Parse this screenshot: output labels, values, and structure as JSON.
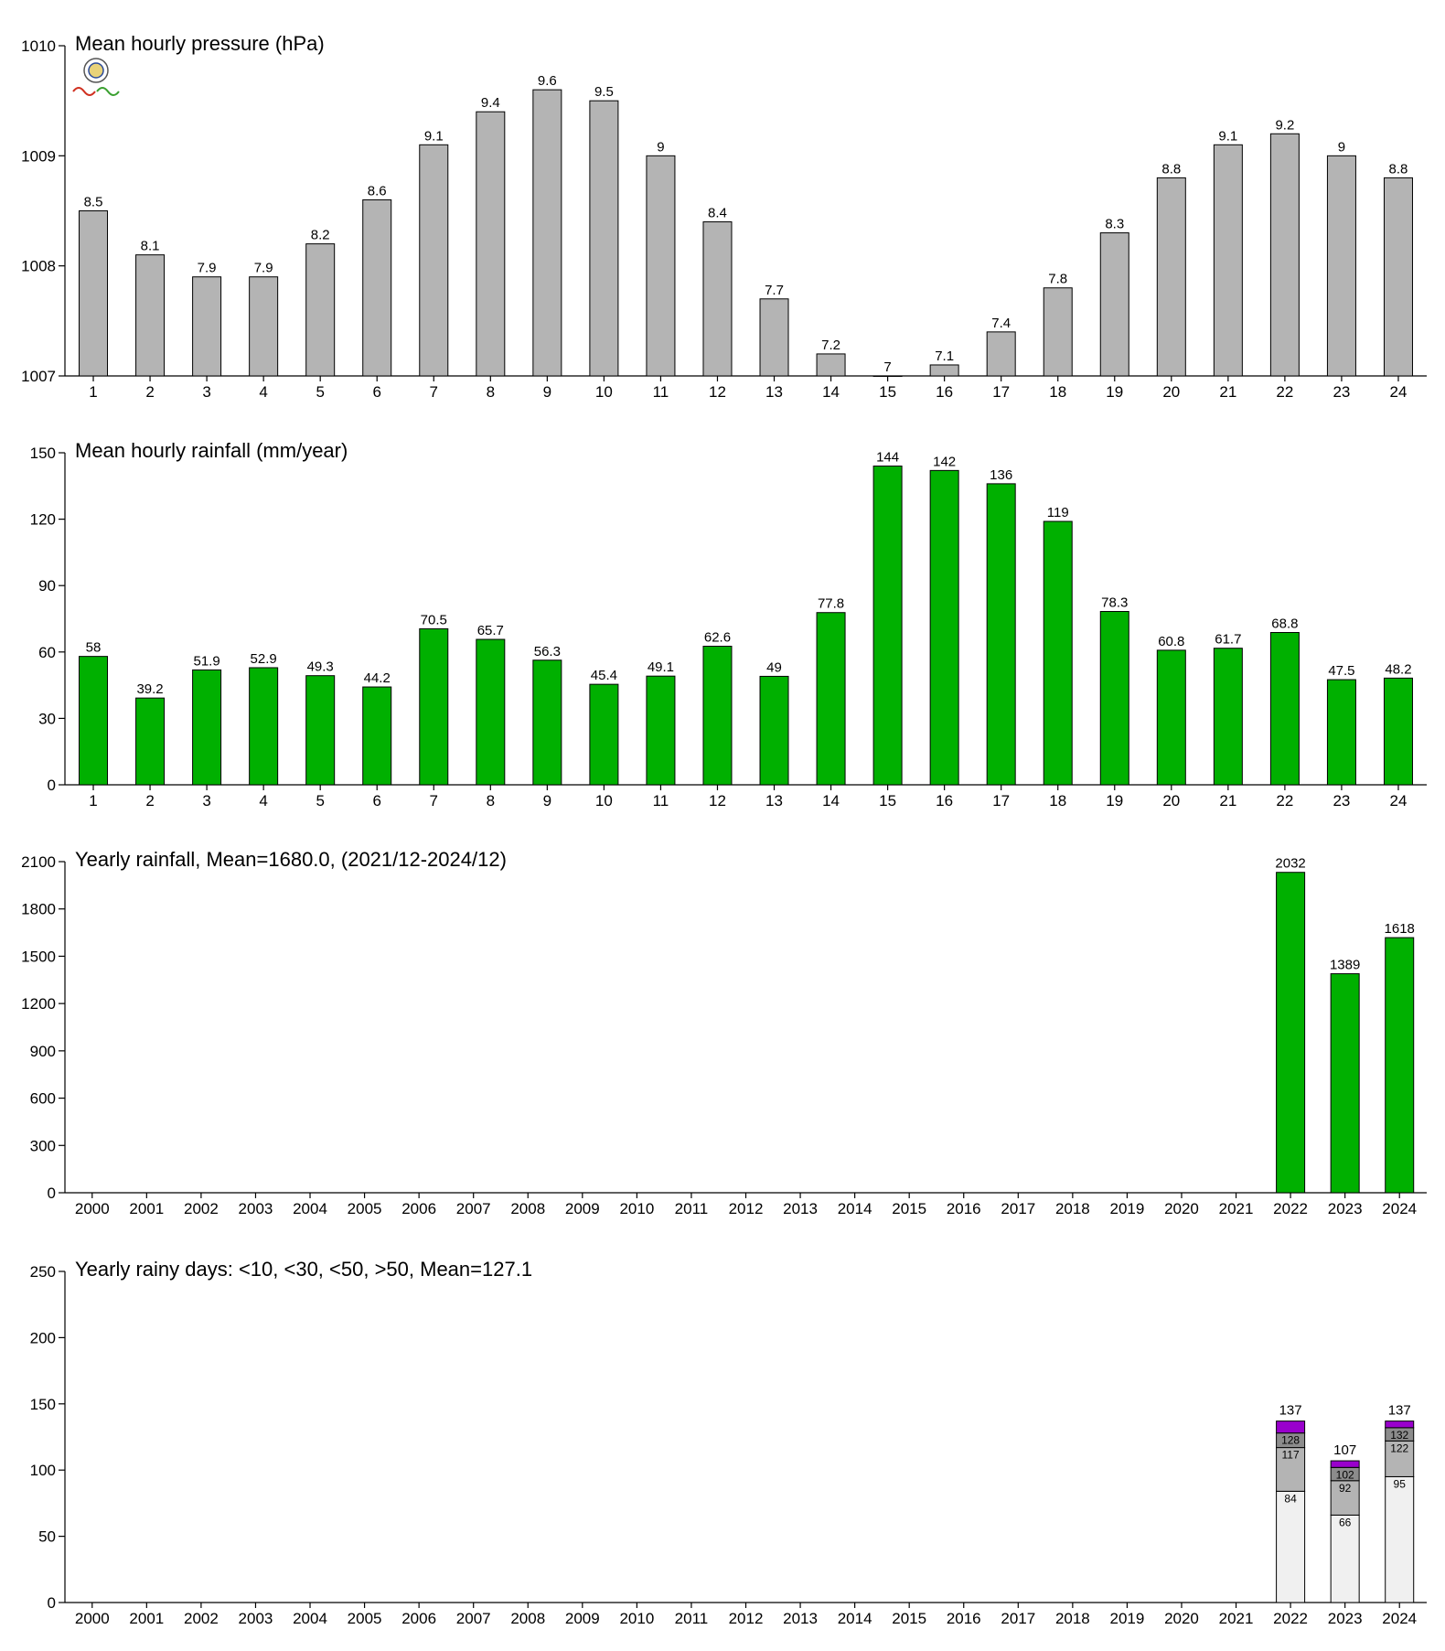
{
  "chart_data": [
    {
      "type": "bar",
      "title": "Mean hourly pressure (hPa)",
      "categories": [
        "1",
        "2",
        "3",
        "4",
        "5",
        "6",
        "7",
        "8",
        "9",
        "10",
        "11",
        "12",
        "13",
        "14",
        "15",
        "16",
        "17",
        "18",
        "19",
        "20",
        "21",
        "22",
        "23",
        "24"
      ],
      "values": [
        1008.5,
        1008.1,
        1007.9,
        1007.9,
        1008.2,
        1008.6,
        1009.1,
        1009.4,
        1009.6,
        1009.5,
        1009.0,
        1008.4,
        1007.7,
        1007.2,
        1007.0,
        1007.1,
        1007.4,
        1007.8,
        1008.3,
        1008.8,
        1009.1,
        1009.2,
        1009.0,
        1008.8
      ],
      "labels": [
        "8.5",
        "8.1",
        "7.9",
        "7.9",
        "8.2",
        "8.6",
        "9.1",
        "9.4",
        "9.6",
        "9.5",
        "9",
        "8.4",
        "7.7",
        "7.2",
        "7",
        "7.1",
        "7.4",
        "7.8",
        "8.3",
        "8.8",
        "9.1",
        "9.2",
        "9",
        "8.8"
      ],
      "ylim": [
        1007,
        1010
      ],
      "yticks": [
        1007,
        1008,
        1009,
        1010
      ],
      "color": "#b4b4b4"
    },
    {
      "type": "bar",
      "title": "Mean hourly rainfall (mm/year)",
      "categories": [
        "1",
        "2",
        "3",
        "4",
        "5",
        "6",
        "7",
        "8",
        "9",
        "10",
        "11",
        "12",
        "13",
        "14",
        "15",
        "16",
        "17",
        "18",
        "19",
        "20",
        "21",
        "22",
        "23",
        "24"
      ],
      "values": [
        58,
        39.2,
        51.9,
        52.9,
        49.3,
        44.2,
        70.5,
        65.7,
        56.3,
        45.4,
        49.1,
        62.6,
        49,
        77.8,
        144,
        142,
        136,
        119,
        78.3,
        60.8,
        61.7,
        68.8,
        47.5,
        48.2
      ],
      "labels": [
        "58",
        "39.2",
        "51.9",
        "52.9",
        "49.3",
        "44.2",
        "70.5",
        "65.7",
        "56.3",
        "45.4",
        "49.1",
        "62.6",
        "49",
        "77.8",
        "144",
        "142",
        "136",
        "119",
        "78.3",
        "60.8",
        "61.7",
        "68.8",
        "47.5",
        "48.2"
      ],
      "ylim": [
        0,
        150
      ],
      "yticks": [
        0,
        30,
        60,
        90,
        120,
        150
      ],
      "color": "#00b000"
    },
    {
      "type": "bar",
      "title": "Yearly rainfall, Mean=1680.0, (2021/12-2024/12)",
      "categories": [
        "2000",
        "2001",
        "2002",
        "2003",
        "2004",
        "2005",
        "2006",
        "2007",
        "2008",
        "2009",
        "2010",
        "2011",
        "2012",
        "2013",
        "2014",
        "2015",
        "2016",
        "2017",
        "2018",
        "2019",
        "2020",
        "2021",
        "2022",
        "2023",
        "2024"
      ],
      "values": [
        null,
        null,
        null,
        null,
        null,
        null,
        null,
        null,
        null,
        null,
        null,
        null,
        null,
        null,
        null,
        null,
        null,
        null,
        null,
        null,
        null,
        null,
        2032,
        1389,
        1618
      ],
      "labels": [
        "",
        "",
        "",
        "",
        "",
        "",
        "",
        "",
        "",
        "",
        "",
        "",
        "",
        "",
        "",
        "",
        "",
        "",
        "",
        "",
        "",
        "",
        "2032",
        "1389",
        "1618"
      ],
      "ylim": [
        0,
        2100
      ],
      "yticks": [
        0,
        300,
        600,
        900,
        1200,
        1500,
        1800,
        2100
      ],
      "color": "#00b000"
    },
    {
      "type": "bar",
      "stacked": true,
      "title": "Yearly rainy days: <10, <30, <50, >50, Mean=127.1",
      "categories": [
        "2000",
        "2001",
        "2002",
        "2003",
        "2004",
        "2005",
        "2006",
        "2007",
        "2008",
        "2009",
        "2010",
        "2011",
        "2012",
        "2013",
        "2014",
        "2015",
        "2016",
        "2017",
        "2018",
        "2019",
        "2020",
        "2021",
        "2022",
        "2023",
        "2024"
      ],
      "ylim": [
        0,
        250
      ],
      "yticks": [
        0,
        50,
        100,
        150,
        200,
        250
      ],
      "segment_colors": [
        "#f0f0f0",
        "#b4b4b4",
        "#8c8c8c",
        "#9900cc"
      ],
      "stacks": [
        {
          "category": "2022",
          "cumulative": [
            84,
            117,
            128,
            137
          ],
          "total_label": "137",
          "segment_labels": [
            "84",
            "117",
            "128"
          ]
        },
        {
          "category": "2023",
          "cumulative": [
            66,
            92,
            102,
            107
          ],
          "total_label": "107",
          "segment_labels": [
            "66",
            "92",
            "102"
          ]
        },
        {
          "category": "2024",
          "cumulative": [
            95,
            122,
            132,
            137
          ],
          "total_label": "137",
          "segment_labels": [
            "95",
            "122",
            "132"
          ]
        }
      ]
    }
  ]
}
